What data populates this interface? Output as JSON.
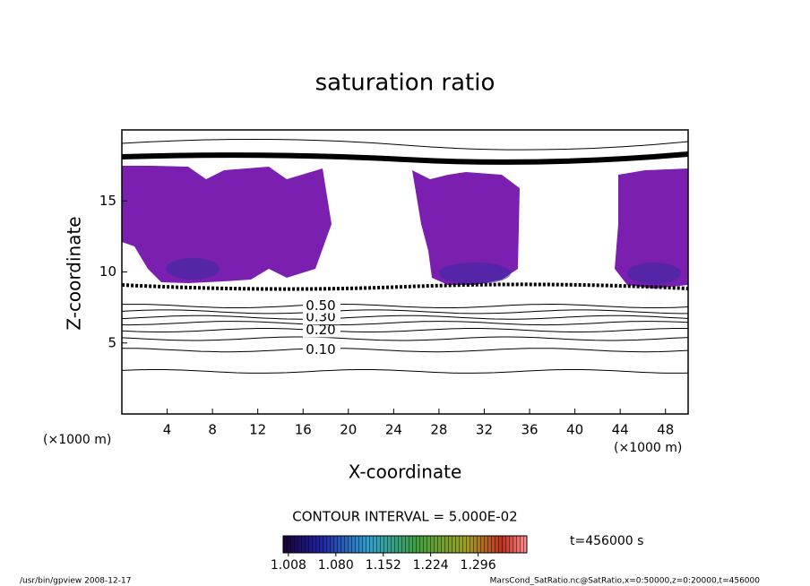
{
  "chart_data": {
    "type": "contour",
    "title": "saturation ratio",
    "xlabel": "X-coordinate",
    "ylabel": "Z-coordinate",
    "x_unit_left": "(×1000 m)",
    "x_unit_right": "(×1000 m)",
    "xlim": [
      0,
      50
    ],
    "xticks": [
      4,
      8,
      12,
      16,
      20,
      24,
      28,
      32,
      36,
      40,
      44,
      48
    ],
    "ylim": [
      0,
      20
    ],
    "yticks": [
      5,
      10,
      15
    ],
    "contours": [
      {
        "level": 0.05,
        "z": 3.0
      },
      {
        "level": {
          "value": 0.1,
          "label": "0.10"
        },
        "z": 4.5
      },
      {
        "level": 0.15,
        "z": 5.3
      },
      {
        "level": {
          "value": 0.2,
          "label": "0.20"
        },
        "z": 5.9
      },
      {
        "level": 0.25,
        "z": 6.4
      },
      {
        "level": {
          "value": 0.3,
          "label": "0.30"
        },
        "z": 6.8
      },
      {
        "level": 0.4,
        "z": 7.2
      },
      {
        "level": {
          "value": 0.5,
          "label": "0.50"
        },
        "z": 7.6
      }
    ],
    "contour_interval": "CONTOUR INTERVAL = 5.000E-02",
    "colorbar": {
      "clim": [
        1.0,
        1.37
      ],
      "ticks": [
        {
          "value": 1.008,
          "label": "1.008"
        },
        {
          "value": 1.08,
          "label": "1.080"
        },
        {
          "value": 1.152,
          "label": "1.152"
        },
        {
          "value": 1.224,
          "label": "1.224"
        },
        {
          "value": 1.296,
          "label": "1.296"
        }
      ]
    },
    "time_label": "t=456000 s",
    "footer_left": "/usr/bin/gpview   2008-12-17",
    "footer_right": "MarsCond_SatRatio.nc@SatRatio,x=0:50000,z=0:20000,t=456000"
  }
}
